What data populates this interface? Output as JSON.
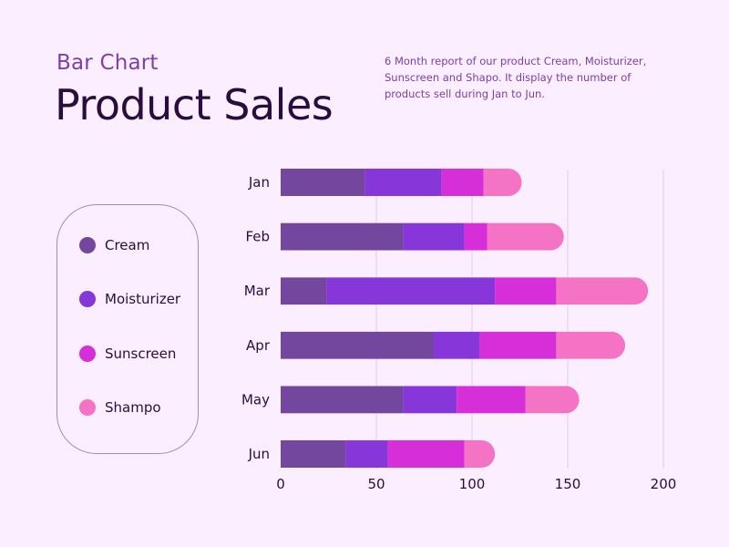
{
  "header": {
    "subtitle": "Bar Chart",
    "title": "Product Sales",
    "description": "6 Month report of our product Cream, Moisturizer, Sunscreen and Shapo. It display the number of products sell during Jan to Jun."
  },
  "legend": {
    "items": [
      {
        "label": "Cream",
        "color": "#74479f"
      },
      {
        "label": "Moisturizer",
        "color": "#8736d9"
      },
      {
        "label": "Sunscreen",
        "color": "#d62ed9"
      },
      {
        "label": "Shampo",
        "color": "#f573c5"
      }
    ]
  },
  "chart_data": {
    "type": "bar",
    "orientation": "horizontal",
    "stacked": true,
    "categories": [
      "Jan",
      "Feb",
      "Mar",
      "Apr",
      "May",
      "Jun"
    ],
    "series": [
      {
        "name": "Cream",
        "color": "#74479f",
        "values": [
          44,
          64,
          24,
          80,
          64,
          34
        ]
      },
      {
        "name": "Moisturizer",
        "color": "#8736d9",
        "values": [
          40,
          32,
          88,
          24,
          28,
          22
        ]
      },
      {
        "name": "Sunscreen",
        "color": "#d62ed9",
        "values": [
          22,
          12,
          32,
          40,
          36,
          40
        ]
      },
      {
        "name": "Shampo",
        "color": "#f573c5",
        "values": [
          20,
          40,
          48,
          36,
          28,
          16
        ]
      }
    ],
    "xlim": [
      0,
      200
    ],
    "xticks": [
      0,
      50,
      100,
      150,
      200
    ],
    "grid": true,
    "gridColor": "#ddc9ea",
    "axisTextColor": "#2a0d3f",
    "legend_position": "left"
  }
}
